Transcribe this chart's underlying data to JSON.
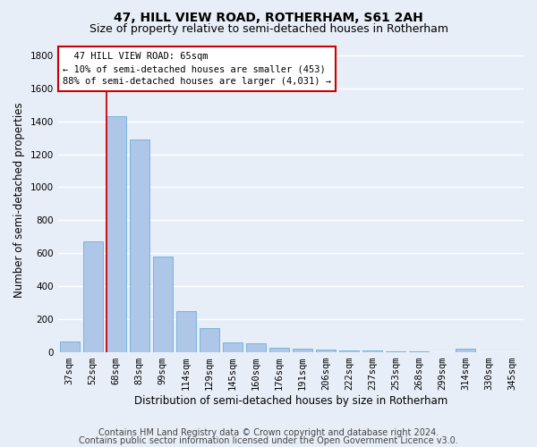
{
  "title": "47, HILL VIEW ROAD, ROTHERHAM, S61 2AH",
  "subtitle": "Size of property relative to semi-detached houses in Rotherham",
  "xlabel": "Distribution of semi-detached houses by size in Rotherham",
  "ylabel": "Number of semi-detached properties",
  "categories": [
    "37sqm",
    "52sqm",
    "68sqm",
    "83sqm",
    "99sqm",
    "114sqm",
    "129sqm",
    "145sqm",
    "160sqm",
    "176sqm",
    "191sqm",
    "206sqm",
    "222sqm",
    "237sqm",
    "253sqm",
    "268sqm",
    "299sqm",
    "314sqm",
    "330sqm",
    "345sqm"
  ],
  "values": [
    65,
    670,
    1430,
    1290,
    580,
    250,
    145,
    60,
    55,
    30,
    20,
    15,
    10,
    10,
    8,
    5,
    3,
    20,
    3,
    2
  ],
  "bar_color": "#aec6e8",
  "bar_edge_color": "#6aaed6",
  "vline_x": 1.575,
  "vline_color": "#cc0000",
  "property_label": "47 HILL VIEW ROAD: 65sqm",
  "pct_smaller": 10,
  "count_smaller": 453,
  "pct_larger": 88,
  "count_larger": 4031,
  "ann_facecolor": "#ffffff",
  "ann_edgecolor": "#cc0000",
  "ylim_max": 1850,
  "yticks": [
    0,
    200,
    400,
    600,
    800,
    1000,
    1200,
    1400,
    1600,
    1800
  ],
  "footer1": "Contains HM Land Registry data © Crown copyright and database right 2024.",
  "footer2": "Contains public sector information licensed under the Open Government Licence v3.0.",
  "background_color": "#e8eef8",
  "grid_color": "#ffffff",
  "title_fontsize": 10,
  "subtitle_fontsize": 9,
  "tick_fontsize": 7.5,
  "label_fontsize": 8.5,
  "ann_fontsize": 7.5,
  "footer_fontsize": 7
}
